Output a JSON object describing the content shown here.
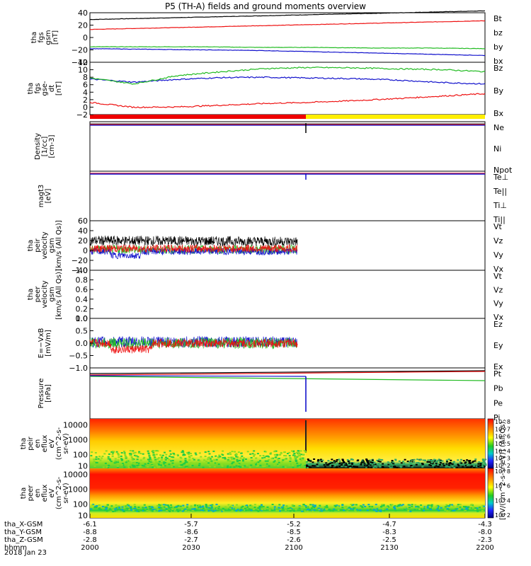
{
  "title": "P5 (TH-A) fields and ground moments overview",
  "colors": {
    "red": "#ee1111",
    "green": "#22bb22",
    "blue": "#1111cc",
    "black": "#000000",
    "yellow": "#ffee00",
    "magenta": "#cc33cc"
  },
  "chart_data": [
    {
      "type": "line",
      "panel": "fgs",
      "ylabel": [
        "tha",
        "fgs",
        "gsm",
        "[nT]"
      ],
      "ylim": [
        -40,
        40
      ],
      "yticks": [
        "40",
        "20",
        "0",
        "−20",
        "−40"
      ],
      "series": [
        {
          "name": "Bt",
          "color": "black",
          "values": [
            29,
            31,
            33,
            35,
            37,
            39,
            41,
            43
          ]
        },
        {
          "name": "bz",
          "color": "red",
          "values": [
            13,
            15,
            17,
            19,
            21,
            23,
            25,
            27
          ]
        },
        {
          "name": "by",
          "color": "green",
          "values": [
            -15,
            -15,
            -15,
            -16,
            -16,
            -17,
            -17,
            -18
          ]
        },
        {
          "name": "bx",
          "color": "blue",
          "values": [
            -18,
            -19,
            -20,
            -21,
            -23,
            -25,
            -27,
            -29
          ]
        }
      ]
    },
    {
      "type": "line",
      "panel": "fgs_gse",
      "ylabel": [
        "tha",
        "fgs",
        "gse-",
        "dt",
        "[nT]"
      ],
      "ylim": [
        -3,
        12
      ],
      "yticks": [
        "12",
        "10",
        "8",
        "6",
        "4",
        "2",
        "0",
        "−2"
      ],
      "series": [
        {
          "name": "Bz",
          "color": "red",
          "values": [
            0.5,
            -0.9,
            -0.8,
            -0.3,
            0.2,
            0.5,
            1,
            1.6,
            2.3,
            3
          ]
        },
        {
          "name": "By",
          "color": "blue",
          "values": [
            7.2,
            6.3,
            7.1,
            7.6,
            7.7,
            7.5,
            7.3,
            6.9,
            6.2,
            5.8
          ]
        },
        {
          "name": "Bx",
          "color": "green",
          "values": [
            7.5,
            5.8,
            8.2,
            9.3,
            10.2,
            10.5,
            10.4,
            10.1,
            9.9,
            9.3
          ]
        }
      ]
    },
    {
      "type": "line",
      "panel": "density",
      "scale": "log",
      "ylabel": [
        "Density",
        "[1/cc]",
        "[cm-3]"
      ],
      "ylim": [
        -15,
        2
      ],
      "series_labels": [
        {
          "name": "Ne",
          "color": "red"
        },
        {
          "name": "Ni",
          "color": "black"
        },
        {
          "name": "Npot",
          "color": "blue"
        }
      ]
    },
    {
      "type": "line",
      "panel": "temperature",
      "scale": "log",
      "ylabel": [
        "magt3",
        "[eV]"
      ],
      "series_labels": [
        {
          "name": "Te⊥",
          "color": "red"
        },
        {
          "name": "Te||",
          "color": "black"
        },
        {
          "name": "Ti⊥",
          "color": "magenta"
        },
        {
          "name": "Ti||",
          "color": "green"
        }
      ]
    },
    {
      "type": "line",
      "panel": "peir_velocity",
      "ylabel": [
        "tha",
        "peir",
        "velocity",
        "gsm",
        "[km/s (All Qs)]"
      ],
      "ylim": [
        -40,
        60
      ],
      "yticks": [
        "60",
        "40",
        "20",
        "0",
        "−20",
        "−40"
      ],
      "series_labels": [
        {
          "name": "Vt",
          "color": "black"
        },
        {
          "name": "Vz",
          "color": "red"
        },
        {
          "name": "Vy",
          "color": "green"
        },
        {
          "name": "Vx",
          "color": "blue"
        }
      ]
    },
    {
      "type": "line",
      "panel": "peer_velocity",
      "ylabel": [
        "tha",
        "peer",
        "velocity",
        "gsm",
        "[km/s (All Qs)]"
      ],
      "ylim": [
        0,
        1
      ],
      "yticks": [
        "1.0",
        "0.8",
        "0.6",
        "0.4",
        "0.2",
        "0.0"
      ],
      "series_labels": [
        {
          "name": "Vt",
          "color": "black"
        },
        {
          "name": "Vz",
          "color": "red"
        },
        {
          "name": "Vy",
          "color": "green"
        },
        {
          "name": "Vx",
          "color": "blue"
        }
      ]
    },
    {
      "type": "line",
      "panel": "efield",
      "ylabel": [
        "E=−VxB",
        "[mV/m]"
      ],
      "ylim": [
        -1,
        1
      ],
      "yticks": [
        "1.0",
        "0.5",
        "0.0",
        "−0.5",
        "−1.0"
      ],
      "series_labels": [
        {
          "name": "Ez",
          "color": "red"
        },
        {
          "name": "Ey",
          "color": "green"
        },
        {
          "name": "Ex",
          "color": "blue"
        }
      ]
    },
    {
      "type": "line",
      "panel": "pressure",
      "scale": "log",
      "ylabel": [
        "Pressure",
        "[nPa]"
      ],
      "series_labels": [
        {
          "name": "Pt",
          "color": "black"
        },
        {
          "name": "Pb",
          "color": "red"
        },
        {
          "name": "Pe",
          "color": "green"
        },
        {
          "name": "Pi",
          "color": "blue"
        }
      ]
    },
    {
      "type": "heatmap",
      "panel": "peir_spectrogram",
      "ylabel": [
        "tha",
        "peir",
        "en",
        "eflux",
        "eV",
        "(cm^2-s-",
        "sr-eV)"
      ],
      "yticks": [
        "10000",
        "1000",
        "100",
        "10"
      ],
      "colorbar_label": "[eV/(cm^2-s-sr-eV)] (All Qs)"
    },
    {
      "type": "heatmap",
      "panel": "peer_spectrogram",
      "ylabel": [
        "tha",
        "peer",
        "en",
        "eflux",
        "eV",
        "(cm^2-s-",
        "sr-eV)"
      ],
      "yticks": [
        "10000",
        "1000",
        "100",
        "10"
      ],
      "colorbar_label": "[eV/(cm^2-s-sr-eV)]"
    }
  ],
  "xaxis": {
    "rows": [
      {
        "label": "tha_X-GSM",
        "values": [
          "-6.1",
          "-5.7",
          "-5.2",
          "-4.7",
          "-4.3"
        ]
      },
      {
        "label": "tha_Y-GSM",
        "values": [
          "-8.8",
          "-8.6",
          "-8.5",
          "-8.3",
          "-8.0"
        ]
      },
      {
        "label": "tha_Z-GSM",
        "values": [
          "-2.8",
          "-2.7",
          "-2.6",
          "-2.5",
          "-2.3"
        ]
      },
      {
        "label": "hhmm",
        "values": [
          "2000",
          "2030",
          "2100",
          "2130",
          "2200"
        ]
      }
    ],
    "date": "2018 Jan 23"
  },
  "colorbars": {
    "top_ticks": [
      "10^8",
      "10^7",
      "10^6",
      "10^5",
      "10^4",
      "10^3",
      "10^2"
    ],
    "bottom_ticks": [
      "10^8",
      "10^6",
      "10^4",
      "10^2"
    ]
  }
}
